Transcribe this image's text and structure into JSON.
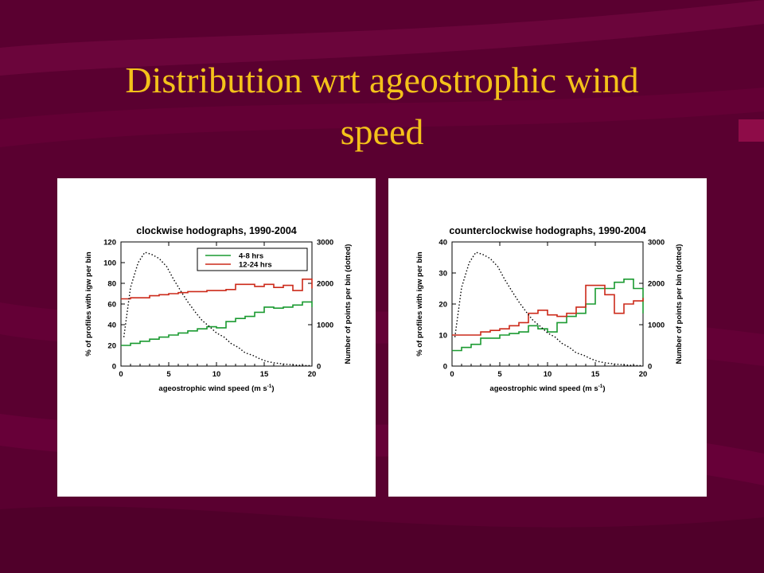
{
  "slide": {
    "title_line1": "Distribution wrt ageostrophic wind",
    "title_line2": "speed",
    "colors": {
      "background": "#5a0030",
      "title": "#f4c21a",
      "series_4_8": "#1a9a30",
      "series_12_24": "#cc2a1a",
      "dotted": "#000000"
    }
  },
  "chart_data": [
    {
      "type": "line",
      "title": "clockwise hodographs, 1990-2004",
      "xlabel": "ageostrophic wind speed (m s",
      "xlabel_sup": "-1",
      "xlabel_end": ")",
      "ylabel": "% of profiles with igw per bin",
      "y2label": "Number of points per bin (dotted)",
      "xlim": [
        0,
        20
      ],
      "ylim": [
        0,
        120
      ],
      "y2lim": [
        0,
        3000
      ],
      "xticks": [
        0,
        5,
        10,
        15,
        20
      ],
      "yticks": [
        0,
        20,
        40,
        60,
        80,
        100,
        120
      ],
      "y2ticks": [
        0,
        1000,
        2000,
        3000
      ],
      "legend": {
        "position": "top-right",
        "entries": [
          "4-8 hrs",
          "12-24 hrs"
        ]
      },
      "series": [
        {
          "name": "4-8 hrs",
          "style": "step",
          "axis": "left",
          "x": [
            0,
            1,
            2,
            3,
            4,
            5,
            6,
            7,
            8,
            9,
            10,
            11,
            12,
            13,
            14,
            15,
            16,
            17,
            18,
            19,
            20
          ],
          "values": [
            20,
            22,
            24,
            26,
            28,
            30,
            32,
            34,
            36,
            38,
            37,
            43,
            46,
            48,
            52,
            57,
            56,
            57,
            59,
            62,
            57
          ]
        },
        {
          "name": "12-24 hrs",
          "style": "step",
          "axis": "left",
          "x": [
            0,
            1,
            2,
            3,
            4,
            5,
            6,
            7,
            8,
            9,
            10,
            11,
            12,
            13,
            14,
            15,
            16,
            17,
            18,
            19,
            20
          ],
          "values": [
            65,
            66,
            66,
            68,
            69,
            70,
            71,
            72,
            72,
            73,
            73,
            74,
            79,
            79,
            77,
            79,
            76,
            78,
            73,
            84,
            75
          ]
        },
        {
          "name": "",
          "style": "dotted",
          "axis": "right",
          "x": [
            0.3,
            1,
            1.8,
            2.5,
            3.2,
            4,
            4.8,
            5.5,
            6.3,
            7,
            7.8,
            8.5,
            9.3,
            10,
            10.8,
            11.5,
            12.3,
            13,
            13.8,
            14.5,
            15.3,
            16,
            17,
            18,
            19,
            20
          ],
          "values": [
            700,
            1900,
            2500,
            2750,
            2700,
            2600,
            2400,
            2100,
            1800,
            1550,
            1300,
            1100,
            950,
            800,
            700,
            550,
            450,
            320,
            260,
            180,
            110,
            80,
            50,
            30,
            15,
            10
          ]
        }
      ]
    },
    {
      "type": "line",
      "title": "counterclockwise hodographs, 1990-2004",
      "xlabel": "ageostrophic wind speed (m s",
      "xlabel_sup": "-1",
      "xlabel_end": ")",
      "ylabel": "% of profiles with igw per bin",
      "y2label": "Number of points per bin (dotted)",
      "xlim": [
        0,
        20
      ],
      "ylim": [
        0,
        40
      ],
      "y2lim": [
        0,
        3000
      ],
      "xticks": [
        0,
        5,
        10,
        15,
        20
      ],
      "yticks": [
        0,
        10,
        20,
        30,
        40
      ],
      "y2ticks": [
        0,
        1000,
        2000,
        3000
      ],
      "series": [
        {
          "name": "4-8 hrs",
          "style": "step",
          "axis": "left",
          "x": [
            0,
            1,
            2,
            3,
            4,
            5,
            6,
            7,
            8,
            9,
            10,
            11,
            12,
            13,
            14,
            15,
            16,
            17,
            18,
            19,
            20
          ],
          "values": [
            5,
            6,
            7,
            9,
            9,
            10,
            10.5,
            11,
            13,
            12,
            11,
            14,
            16,
            17,
            20,
            25,
            25,
            27,
            28,
            25,
            17
          ]
        },
        {
          "name": "12-24 hrs",
          "style": "step",
          "axis": "left",
          "x": [
            0,
            1,
            2,
            3,
            4,
            5,
            6,
            7,
            8,
            9,
            10,
            11,
            12,
            13,
            14,
            15,
            16,
            17,
            18,
            19,
            20
          ],
          "values": [
            10,
            10,
            10,
            11,
            11.5,
            12,
            13,
            14,
            17,
            18,
            16.5,
            16,
            17,
            19,
            26,
            26,
            23,
            17,
            20,
            21,
            22
          ]
        },
        {
          "name": "",
          "style": "dotted",
          "axis": "right",
          "x": [
            0.3,
            1,
            1.8,
            2.5,
            3.2,
            4,
            4.8,
            5.5,
            6.3,
            7,
            7.8,
            8.5,
            9.3,
            10,
            10.8,
            11.5,
            12.3,
            13,
            13.8,
            14.5,
            15.3,
            16,
            17,
            18,
            19,
            20
          ],
          "values": [
            700,
            1900,
            2500,
            2750,
            2700,
            2600,
            2400,
            2100,
            1800,
            1550,
            1300,
            1100,
            950,
            800,
            700,
            550,
            450,
            320,
            260,
            180,
            110,
            80,
            50,
            30,
            15,
            10
          ]
        }
      ]
    }
  ]
}
